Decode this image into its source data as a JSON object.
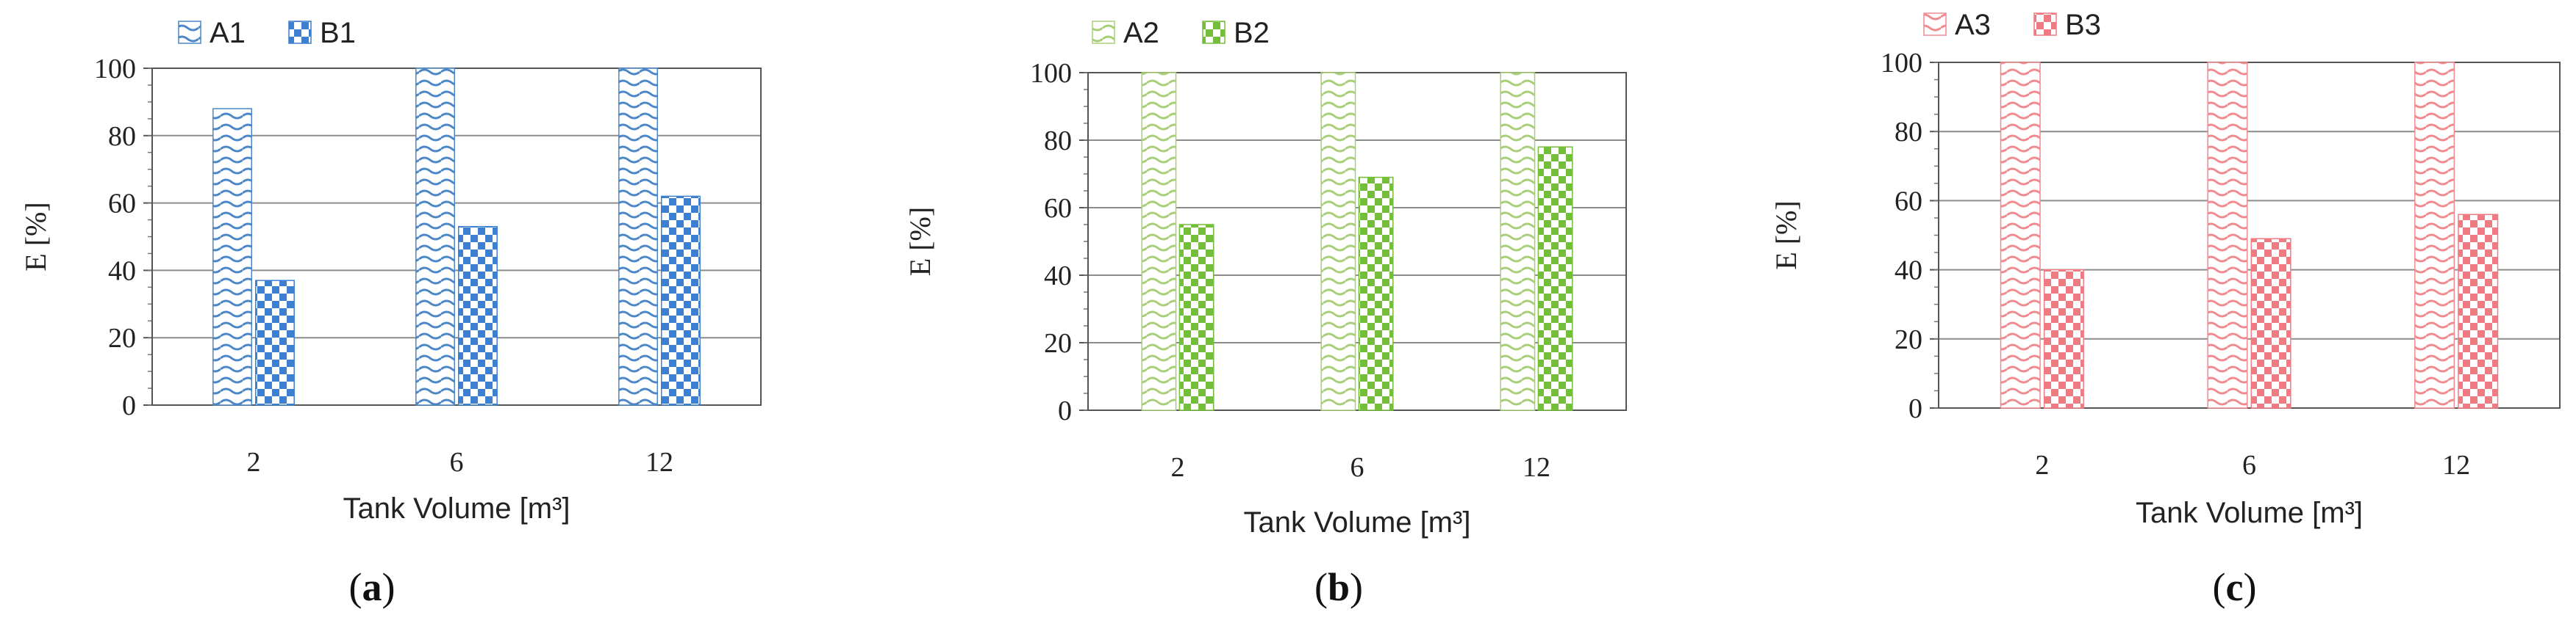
{
  "chart_data": [
    {
      "type": "bar",
      "panel_label": "a",
      "categories": [
        "2",
        "6",
        "12"
      ],
      "series": [
        {
          "name": "A1",
          "values": [
            88,
            100,
            100
          ],
          "color": "#4a86c8",
          "pattern": "wave"
        },
        {
          "name": "B1",
          "values": [
            37,
            53,
            62
          ],
          "color": "#3d7fd0",
          "pattern": "checker"
        }
      ],
      "xlabel": "Tank Volume [m³]",
      "ylabel": "E [%]",
      "ylim": [
        0,
        100
      ],
      "yticks": [
        0,
        20,
        40,
        60,
        80,
        100
      ],
      "grid": true,
      "legend_position": "top"
    },
    {
      "type": "bar",
      "panel_label": "b",
      "categories": [
        "2",
        "6",
        "12"
      ],
      "series": [
        {
          "name": "A2",
          "values": [
            100,
            100,
            100
          ],
          "color": "#a8cf78",
          "pattern": "wave"
        },
        {
          "name": "B2",
          "values": [
            55,
            69,
            78
          ],
          "color": "#74bf3a",
          "pattern": "checker"
        }
      ],
      "xlabel": "Tank Volume [m³]",
      "ylabel": "E [%]",
      "ylim": [
        0,
        100
      ],
      "yticks": [
        0,
        20,
        40,
        60,
        80,
        100
      ],
      "grid": true,
      "legend_position": "top"
    },
    {
      "type": "bar",
      "panel_label": "c",
      "categories": [
        "2",
        "6",
        "12"
      ],
      "series": [
        {
          "name": "A3",
          "values": [
            100,
            100,
            100
          ],
          "color": "#f08a8e",
          "pattern": "wave"
        },
        {
          "name": "B3",
          "values": [
            40,
            49,
            56
          ],
          "color": "#f07a82",
          "pattern": "checker"
        }
      ],
      "xlabel": "Tank Volume [m³]",
      "ylabel": "E [%]",
      "ylim": [
        0,
        100
      ],
      "yticks": [
        0,
        20,
        40,
        60,
        80,
        100
      ],
      "grid": true,
      "legend_position": "top"
    }
  ]
}
